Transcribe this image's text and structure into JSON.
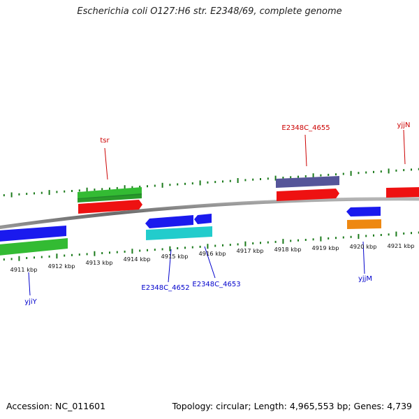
{
  "title": "Escherichia coli O127:H6 str. E2348/69, complete genome",
  "footer": {
    "accession": "Accession: NC_011601",
    "topology": "Topology: circular; Length: 4,965,553 bp; Genes: 4,739"
  },
  "colors": {
    "forward_label": "#cc0000",
    "reverse_label": "#0000cc",
    "tick": "#1a7a1a",
    "backbone": "#808080",
    "red": "#ee1111",
    "blue": "#1a1aee",
    "green": "#33bb33",
    "cyan": "#22cccc",
    "purple": "#555599",
    "orange": "#ee8811"
  },
  "scale_labels": [
    "4911 kbp",
    "4912 kbp",
    "4913 kbp",
    "4914 kbp",
    "4915 kbp",
    "4916 kbp",
    "4917 kbp",
    "4918 kbp",
    "4919 kbp",
    "4920 kbp",
    "4921 kbp"
  ],
  "gene_labels_forward": [
    "tsr",
    "E2348C_4655",
    "yjjN"
  ],
  "gene_labels_reverse": [
    "yjiY",
    "E2348C_4652",
    "E2348C_4653",
    "yjjM"
  ]
}
